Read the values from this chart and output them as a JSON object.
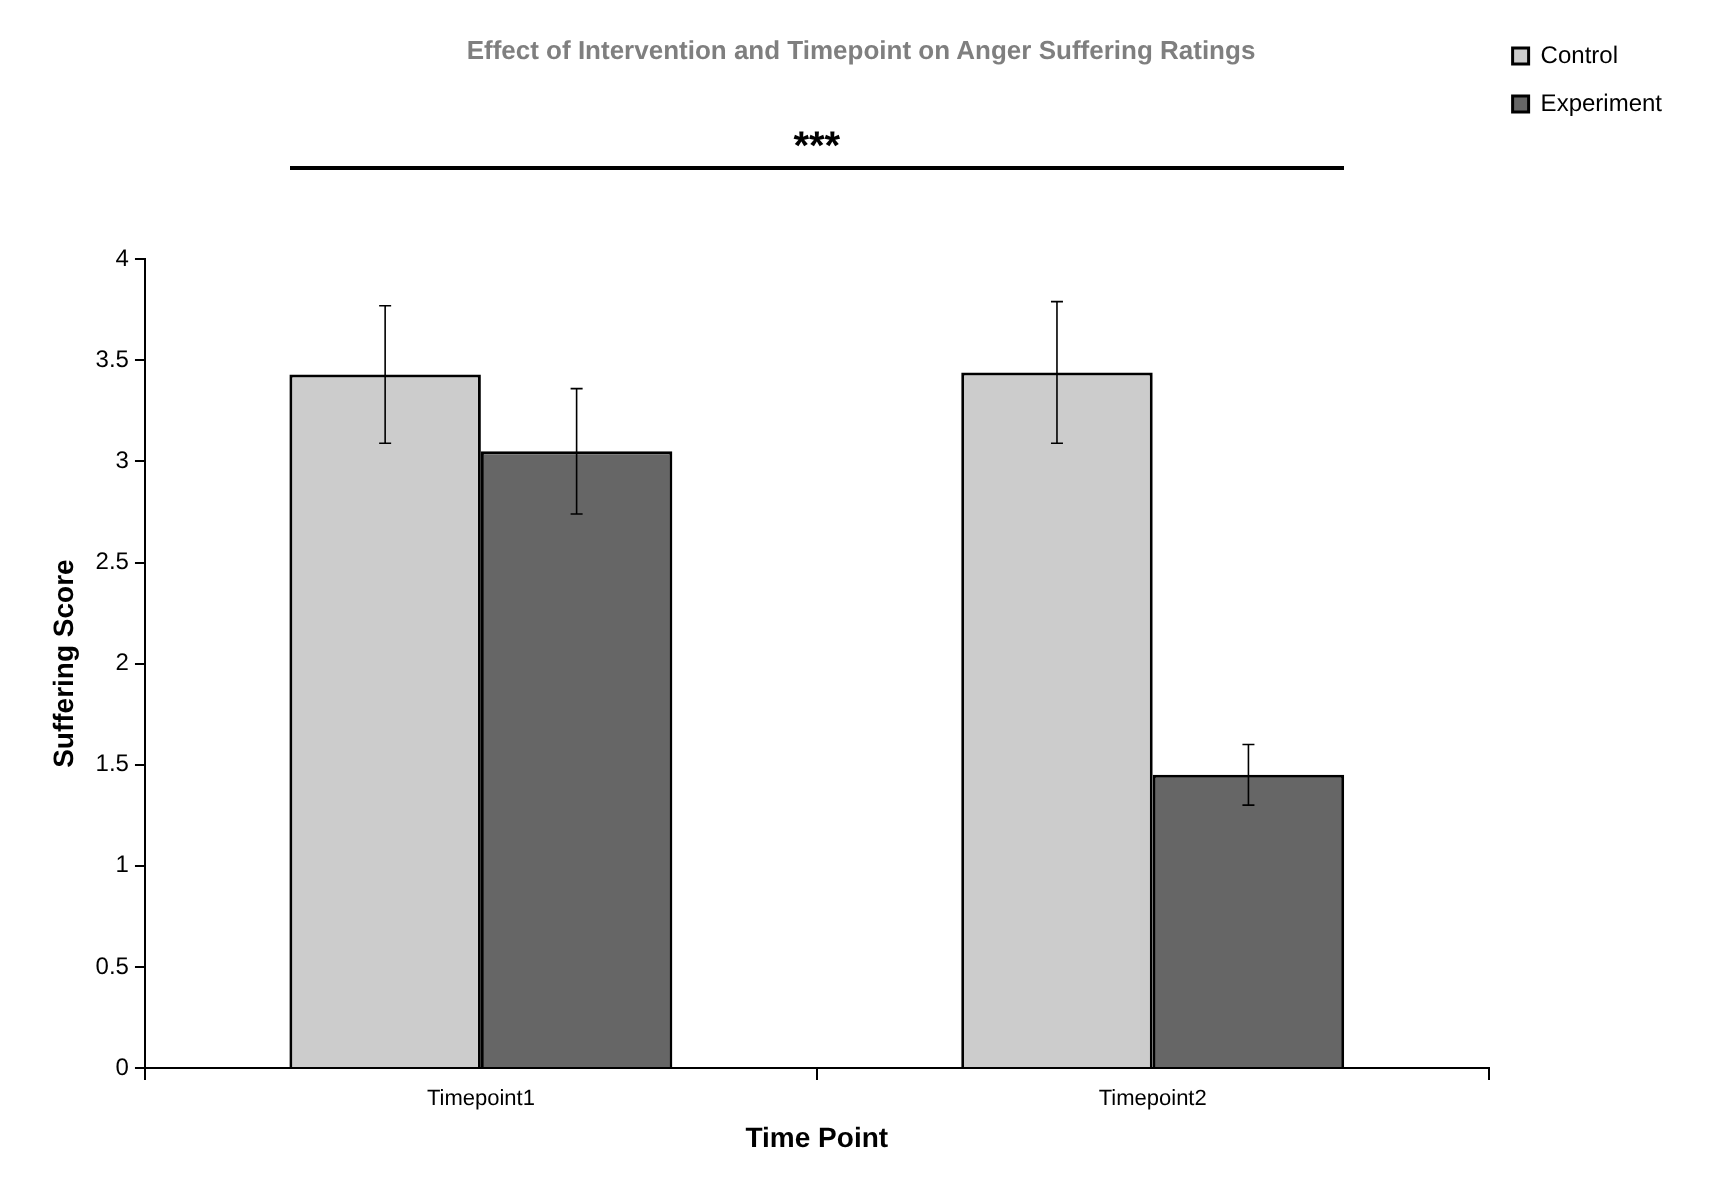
{
  "chart_data": {
    "type": "bar",
    "title": "Effect of Intervention and Timepoint on Anger Suffering Ratings",
    "xlabel": "Time Point",
    "ylabel": "Suffering Score",
    "categories": [
      "Timepoint1",
      "Timepoint2"
    ],
    "series": [
      {
        "name": "Control",
        "color": "#cccccc",
        "values": [
          3.43,
          3.44
        ],
        "errors": [
          0.34,
          0.35
        ]
      },
      {
        "name": "Experiment",
        "color": "#666666",
        "values": [
          3.05,
          1.45
        ],
        "errors": [
          0.31,
          0.15
        ]
      }
    ],
    "ylim": [
      0,
      4
    ],
    "yticks": [
      0,
      0.5,
      1,
      1.5,
      2,
      2.5,
      3,
      3.5,
      4
    ],
    "grid": false,
    "legend": "right",
    "annotations": [
      "***"
    ]
  }
}
